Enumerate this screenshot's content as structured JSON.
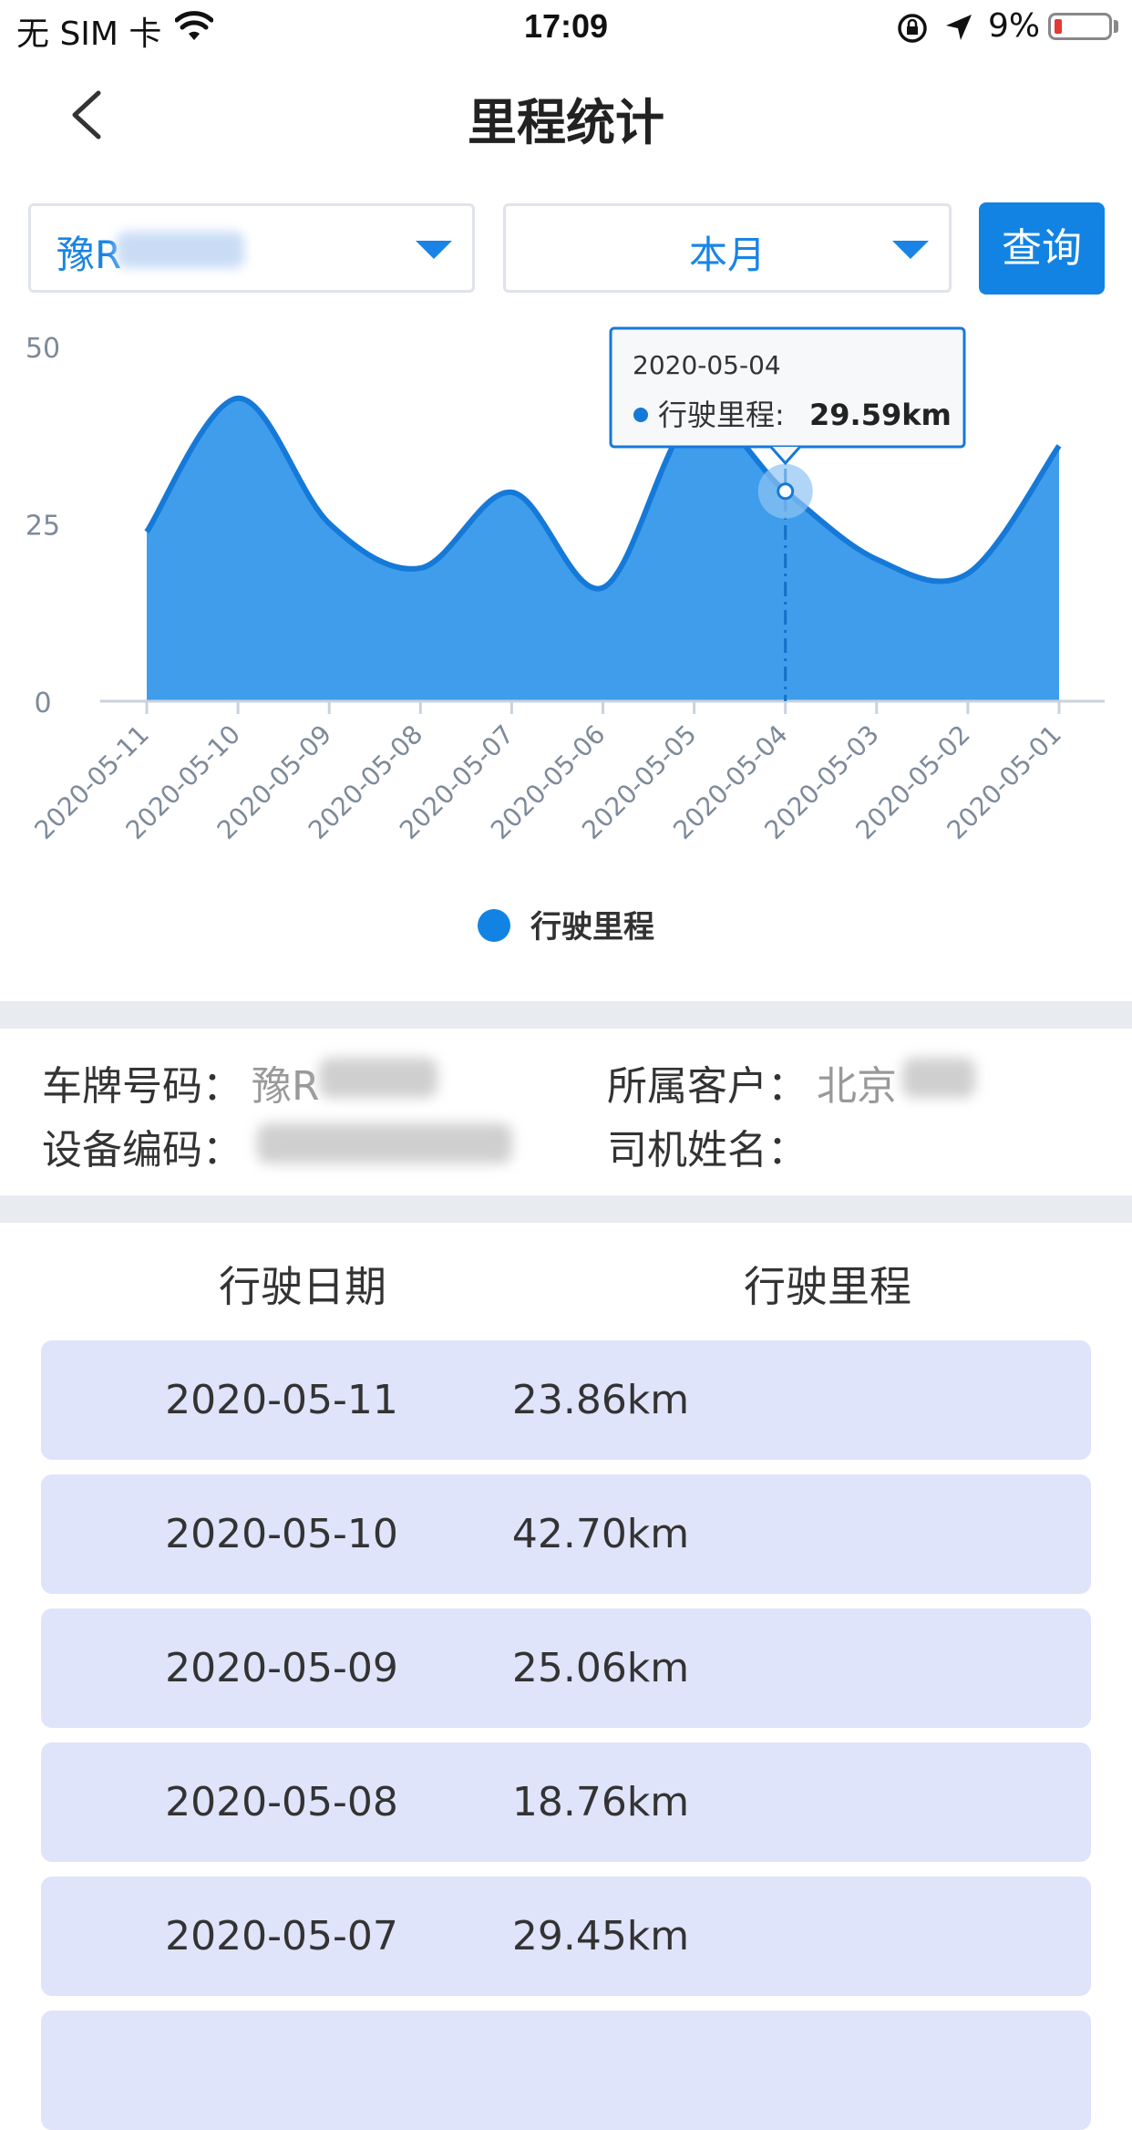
{
  "status_bar": {
    "carrier": "无 SIM 卡",
    "time": "17:09",
    "battery": "9%"
  },
  "header": {
    "title": "里程统计"
  },
  "filters": {
    "vehicle_prefix": "豫R",
    "period": "本月",
    "query_label": "查询"
  },
  "colors": {
    "accent": "#1283e2",
    "area_fill": "#3f9deb",
    "row_bg": "#dfe4fb"
  },
  "chart_data": {
    "type": "area",
    "categories": [
      "2020-05-11",
      "2020-05-10",
      "2020-05-09",
      "2020-05-08",
      "2020-05-07",
      "2020-05-06",
      "2020-05-05",
      "2020-05-04",
      "2020-05-03",
      "2020-05-02",
      "2020-05-01"
    ],
    "series": [
      {
        "name": "行驶里程",
        "values": [
          23.86,
          42.7,
          25.06,
          18.76,
          29.45,
          16.0,
          40.0,
          29.59,
          20.0,
          18.0,
          36.0
        ]
      }
    ],
    "yticks": [
      "50",
      "25",
      "0"
    ],
    "ylim": [
      0,
      50
    ],
    "grid": false,
    "legend": "bottom-center",
    "tooltip": {
      "date": "2020-05-04",
      "label": "行驶里程",
      "value": "29.59km"
    }
  },
  "info": {
    "plate_label": "车牌号码：",
    "plate_value": "豫R",
    "customer_label": "所属客户：",
    "customer_value": "北京",
    "device_label": "设备编码：",
    "driver_label": "司机姓名："
  },
  "table": {
    "headers": [
      "行驶日期",
      "行驶里程"
    ],
    "rows": [
      [
        "2020-05-11",
        "23.86km"
      ],
      [
        "2020-05-10",
        "42.70km"
      ],
      [
        "2020-05-09",
        "25.06km"
      ],
      [
        "2020-05-08",
        "18.76km"
      ],
      [
        "2020-05-07",
        "29.45km"
      ]
    ]
  }
}
